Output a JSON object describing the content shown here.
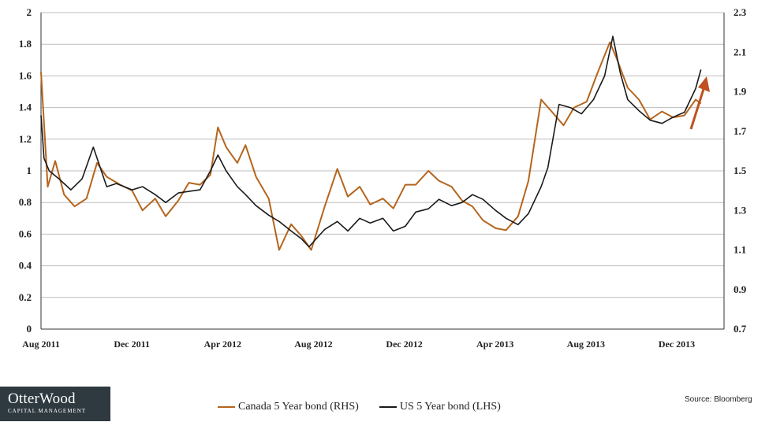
{
  "chart_data": {
    "type": "line",
    "left_axis": {
      "min": 0,
      "max": 2,
      "ticks": [
        "0",
        "0.2",
        "0.4",
        "0.6",
        "0.8",
        "1",
        "1.2",
        "1.4",
        "1.6",
        "1.8",
        "2"
      ]
    },
    "right_axis": {
      "min": 0.7,
      "max": 2.3,
      "ticks": [
        "0.7",
        "0.9",
        "1.1",
        "1.3",
        "1.5",
        "1.7",
        "1.9",
        "2.1",
        "2.3"
      ]
    },
    "x_ticks": [
      "Aug 2011",
      "Dec 2011",
      "Apr 2012",
      "Aug 2012",
      "Dec 2012",
      "Apr 2013",
      "Aug 2013",
      "Dec 2013"
    ],
    "x_range": [
      "2011-08-01",
      "2014-02-01"
    ],
    "grid": "horizontal",
    "series": [
      {
        "name": "Canada 5 Year bond (RHS)",
        "axis": "right",
        "color": "#b5651d",
        "x": [
          "2011-08-01",
          "2011-08-10",
          "2011-08-20",
          "2011-09-01",
          "2011-09-15",
          "2011-10-01",
          "2011-10-15",
          "2011-10-28",
          "2011-11-15",
          "2011-12-01",
          "2011-12-15",
          "2012-01-01",
          "2012-01-15",
          "2012-02-01",
          "2012-02-15",
          "2012-03-01",
          "2012-03-15",
          "2012-03-25",
          "2012-04-05",
          "2012-04-20",
          "2012-05-01",
          "2012-05-15",
          "2012-06-01",
          "2012-06-15",
          "2012-07-01",
          "2012-07-15",
          "2012-07-28",
          "2012-08-15",
          "2012-09-01",
          "2012-09-15",
          "2012-10-01",
          "2012-10-15",
          "2012-11-01",
          "2012-11-15",
          "2012-12-01",
          "2012-12-15",
          "2013-01-01",
          "2013-01-15",
          "2013-02-01",
          "2013-02-15",
          "2013-03-01",
          "2013-03-15",
          "2013-04-01",
          "2013-04-15",
          "2013-05-01",
          "2013-05-15",
          "2013-06-01",
          "2013-06-15",
          "2013-07-01",
          "2013-07-15",
          "2013-08-01",
          "2013-08-15",
          "2013-09-01",
          "2013-09-10",
          "2013-09-25",
          "2013-10-10",
          "2013-10-25",
          "2013-11-10",
          "2013-11-25",
          "2013-12-10",
          "2013-12-25",
          "2014-01-01"
        ],
        "values": [
          2.0,
          1.42,
          1.55,
          1.38,
          1.32,
          1.36,
          1.54,
          1.47,
          1.43,
          1.4,
          1.3,
          1.36,
          1.27,
          1.35,
          1.44,
          1.43,
          1.48,
          1.72,
          1.62,
          1.54,
          1.63,
          1.47,
          1.36,
          1.1,
          1.23,
          1.17,
          1.1,
          1.32,
          1.51,
          1.37,
          1.42,
          1.33,
          1.36,
          1.31,
          1.43,
          1.43,
          1.5,
          1.45,
          1.42,
          1.35,
          1.32,
          1.25,
          1.21,
          1.2,
          1.27,
          1.45,
          1.86,
          1.8,
          1.73,
          1.82,
          1.85,
          1.99,
          2.15,
          2.07,
          1.92,
          1.86,
          1.76,
          1.8,
          1.77,
          1.78,
          1.86,
          1.84
        ]
      },
      {
        "name": "US 5 Year bond (LHS)",
        "axis": "left",
        "color": "#1a1a1a",
        "x": [
          "2011-08-01",
          "2011-08-05",
          "2011-08-12",
          "2011-08-25",
          "2011-09-10",
          "2011-09-25",
          "2011-10-10",
          "2011-10-28",
          "2011-11-10",
          "2011-12-01",
          "2011-12-15",
          "2012-01-01",
          "2012-01-15",
          "2012-02-01",
          "2012-02-15",
          "2012-03-01",
          "2012-03-15",
          "2012-03-25",
          "2012-04-05",
          "2012-04-20",
          "2012-05-01",
          "2012-05-15",
          "2012-06-01",
          "2012-06-15",
          "2012-07-01",
          "2012-07-15",
          "2012-07-25",
          "2012-08-15",
          "2012-09-01",
          "2012-09-15",
          "2012-10-01",
          "2012-10-15",
          "2012-11-01",
          "2012-11-15",
          "2012-12-01",
          "2012-12-15",
          "2013-01-01",
          "2013-01-15",
          "2013-02-01",
          "2013-02-15",
          "2013-03-01",
          "2013-03-15",
          "2013-04-01",
          "2013-04-15",
          "2013-05-01",
          "2013-05-15",
          "2013-06-01",
          "2013-06-10",
          "2013-06-25",
          "2013-07-10",
          "2013-07-25",
          "2013-08-10",
          "2013-08-25",
          "2013-09-05",
          "2013-09-15",
          "2013-09-25",
          "2013-10-10",
          "2013-10-25",
          "2013-11-10",
          "2013-11-25",
          "2013-12-10",
          "2013-12-25",
          "2014-01-01"
        ],
        "values": [
          1.35,
          1.08,
          1.0,
          0.95,
          0.88,
          0.95,
          1.15,
          0.9,
          0.92,
          0.88,
          0.9,
          0.85,
          0.8,
          0.86,
          0.87,
          0.88,
          1.0,
          1.1,
          1.0,
          0.9,
          0.85,
          0.78,
          0.72,
          0.68,
          0.62,
          0.57,
          0.52,
          0.63,
          0.68,
          0.62,
          0.7,
          0.67,
          0.7,
          0.62,
          0.65,
          0.74,
          0.76,
          0.82,
          0.78,
          0.8,
          0.85,
          0.82,
          0.75,
          0.7,
          0.66,
          0.73,
          0.9,
          1.02,
          1.42,
          1.4,
          1.36,
          1.45,
          1.6,
          1.85,
          1.62,
          1.45,
          1.38,
          1.32,
          1.3,
          1.34,
          1.37,
          1.52,
          1.64
        ]
      }
    ]
  },
  "legend": {
    "canada_label": "Canada 5 Year bond (RHS)",
    "us_label": "US 5 Year bond (LHS)",
    "canada_color": "#b5651d",
    "us_color": "#1a1a1a"
  },
  "logo": {
    "brand": "OtterWood",
    "sub": "CAPITAL MANAGEMENT"
  },
  "source": "Source: Bloomberg",
  "arrow_color": "#c0501f"
}
